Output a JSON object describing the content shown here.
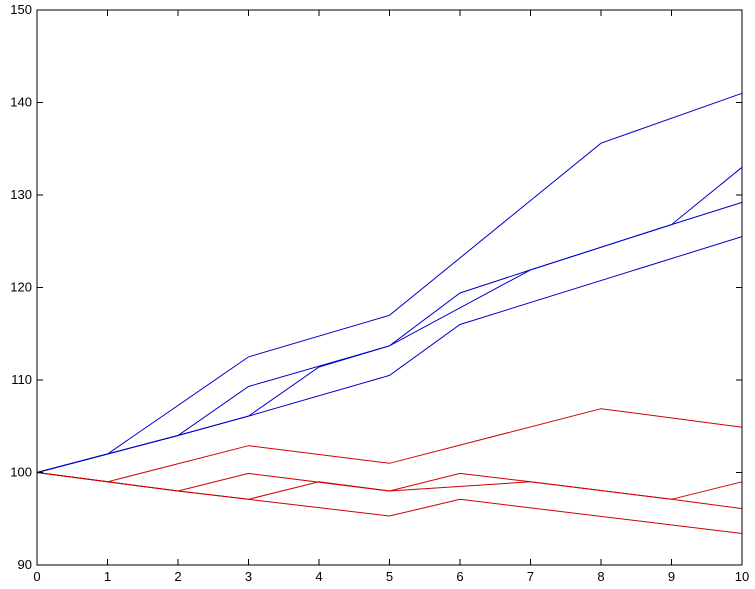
{
  "chart_data": {
    "type": "line",
    "title": "",
    "xlabel": "",
    "ylabel": "",
    "xlim": [
      0,
      10
    ],
    "ylim": [
      90,
      150
    ],
    "x_ticks": [
      "0",
      "1",
      "2",
      "3",
      "4",
      "5",
      "6",
      "7",
      "8",
      "9",
      "10"
    ],
    "y_ticks": [
      "90",
      "100",
      "110",
      "120",
      "130",
      "140",
      "150"
    ],
    "grid": false,
    "legend": "none",
    "series_groups": [
      {
        "color": "#0000cc",
        "series": [
          {
            "x": [
              0,
              1,
              3,
              5,
              8,
              10
            ],
            "y": [
              100,
              102,
              112.5,
              117,
              135.6,
              141
            ]
          },
          {
            "x": [
              0,
              1,
              2,
              3,
              5,
              6,
              7,
              9,
              10
            ],
            "y": [
              100,
              102,
              104,
              109.3,
              113.7,
              119.4,
              121.9,
              126.8,
              133
            ]
          },
          {
            "x": [
              0,
              1,
              2,
              3,
              4,
              5,
              7,
              9,
              10
            ],
            "y": [
              100,
              102,
              104,
              106.1,
              111.4,
              113.7,
              121.9,
              126.8,
              129.2
            ]
          },
          {
            "x": [
              0,
              1,
              2,
              3,
              5,
              6,
              10
            ],
            "y": [
              100,
              102,
              104,
              106.1,
              110.5,
              116,
              125.5
            ]
          }
        ]
      },
      {
        "color": "#cc0000",
        "series": [
          {
            "x": [
              0,
              1,
              3,
              5,
              8,
              10
            ],
            "y": [
              100,
              99,
              102.9,
              101,
              106.9,
              104.9
            ]
          },
          {
            "x": [
              0,
              1,
              2,
              3,
              5,
              6,
              7,
              9,
              10
            ],
            "y": [
              100,
              99,
              98,
              99.9,
              98,
              99.9,
              99,
              97.1,
              99
            ]
          },
          {
            "x": [
              0,
              1,
              2,
              3,
              4,
              5,
              7,
              9,
              10
            ],
            "y": [
              100,
              99,
              98,
              97.1,
              99,
              98,
              99,
              97.1,
              96.1
            ]
          },
          {
            "x": [
              0,
              1,
              2,
              3,
              5,
              6,
              10
            ],
            "y": [
              100,
              99,
              98,
              97.1,
              95.3,
              97.1,
              93.4
            ]
          }
        ]
      }
    ]
  }
}
